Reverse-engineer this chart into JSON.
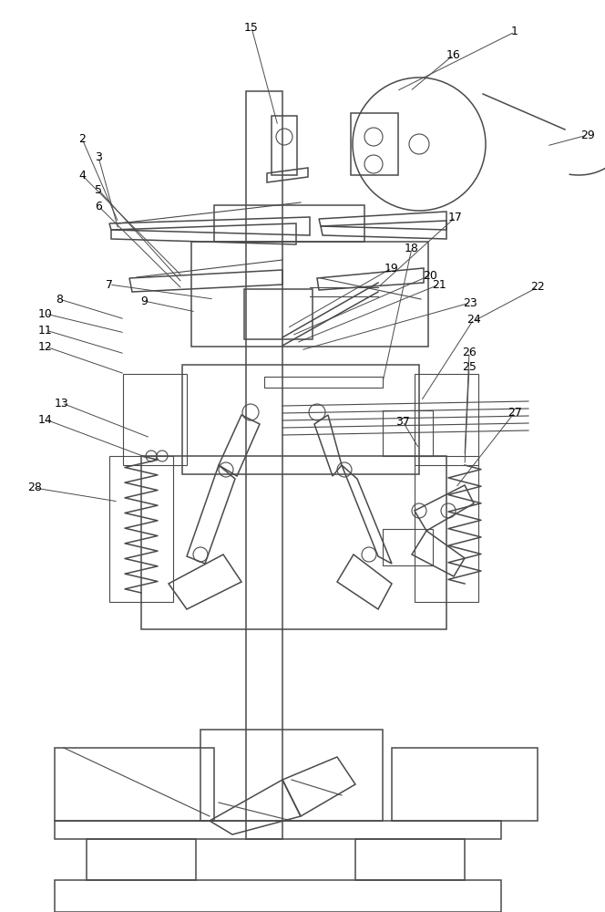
{
  "bg_color": "#ffffff",
  "line_color": "#4a4a4a",
  "lw": 0.8,
  "lw2": 1.1,
  "fig_width": 6.64,
  "fig_height": 10.0,
  "dpi": 100,
  "xlim": [
    0,
    664
  ],
  "ylim": [
    0,
    1000
  ]
}
